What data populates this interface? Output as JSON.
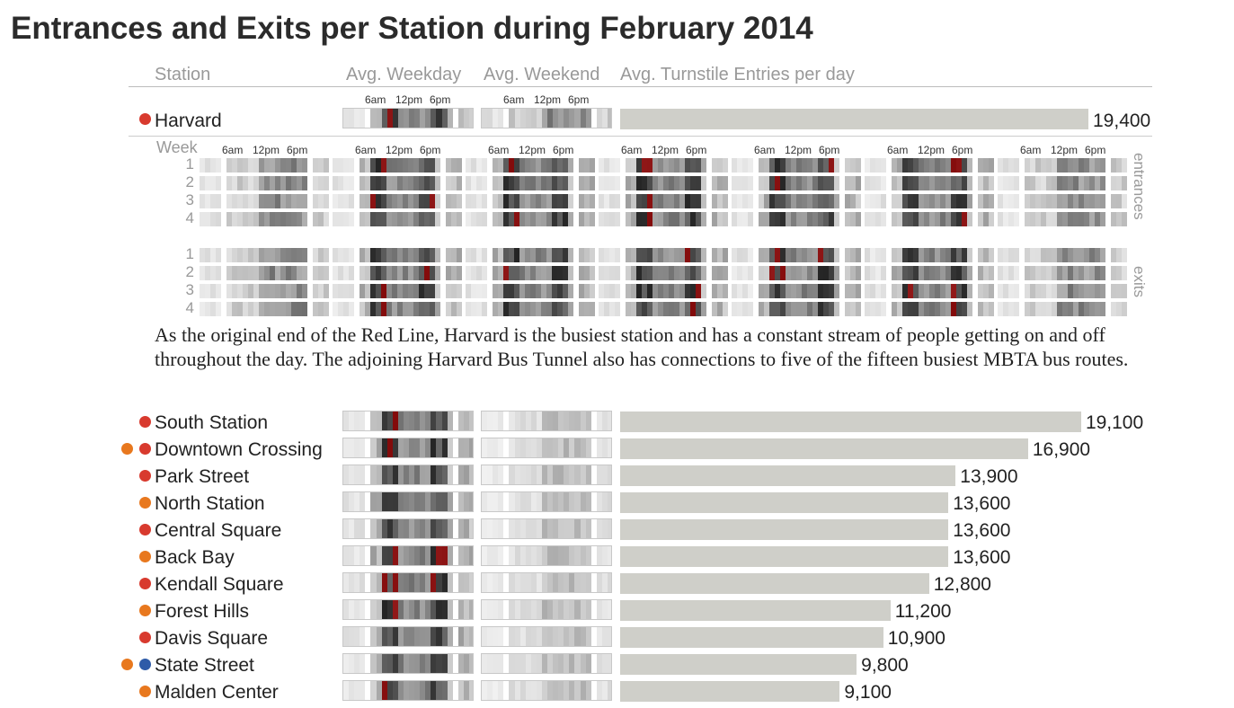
{
  "title": "Entrances and Exits per Station during February 2014",
  "headers": {
    "station": "Station",
    "weekday": "Avg. Weekday",
    "weekend": "Avg. Weekend",
    "entries": "Avg. Turnstile Entries per day"
  },
  "time_ticks": [
    "6am",
    "12pm",
    "6pm"
  ],
  "colors": {
    "red_line": "#d83a2e",
    "orange_line": "#e8781e",
    "blue_line": "#2e5ba8",
    "bar": "#cfcfc9"
  },
  "featured": {
    "name": "Harvard",
    "value_label": "19,400",
    "week_label": "Week",
    "weeks": [
      "1",
      "2",
      "3",
      "4"
    ],
    "entrances_label": "entrances",
    "exits_label": "exits",
    "description": "As the original end of the Red Line, Harvard is the busiest station and has a constant stream of people getting on and off throughout the day. The adjoining Harvard Bus Tunnel also has connections to five of the fifteen busiest MBTA bus routes."
  },
  "stations": [
    {
      "name": "South Station",
      "value_label": "19,100",
      "lines": [
        "red"
      ]
    },
    {
      "name": "Downtown Crossing",
      "value_label": "16,900",
      "lines": [
        "orange",
        "red"
      ]
    },
    {
      "name": "Park Street",
      "value_label": "13,900",
      "lines": [
        "red"
      ]
    },
    {
      "name": "North Station",
      "value_label": "13,600",
      "lines": [
        "orange"
      ]
    },
    {
      "name": "Central Square",
      "value_label": "13,600",
      "lines": [
        "red"
      ]
    },
    {
      "name": "Back Bay",
      "value_label": "13,600",
      "lines": [
        "orange"
      ]
    },
    {
      "name": "Kendall Square",
      "value_label": "12,800",
      "lines": [
        "red"
      ]
    },
    {
      "name": "Forest Hills",
      "value_label": "11,200",
      "lines": [
        "orange"
      ]
    },
    {
      "name": "Davis Square",
      "value_label": "10,900",
      "lines": [
        "red"
      ]
    },
    {
      "name": "State Street",
      "value_label": "9,800",
      "lines": [
        "orange",
        "blue"
      ]
    },
    {
      "name": "Malden Center",
      "value_label": "9,100",
      "lines": [
        "orange"
      ]
    }
  ],
  "chart_data": {
    "type": "bar",
    "title": "Entrances and Exits per Station during February 2014",
    "ylabel": "Avg. Turnstile Entries per day",
    "categories": [
      "Harvard",
      "South Station",
      "Downtown Crossing",
      "Park Street",
      "North Station",
      "Central Square",
      "Back Bay",
      "Kendall Square",
      "Forest Hills",
      "Davis Square",
      "State Street",
      "Malden Center"
    ],
    "values": [
      19400,
      19100,
      16900,
      13900,
      13600,
      13600,
      13600,
      12800,
      11200,
      10900,
      9800,
      9100
    ],
    "xlim": [
      0,
      19400
    ]
  }
}
